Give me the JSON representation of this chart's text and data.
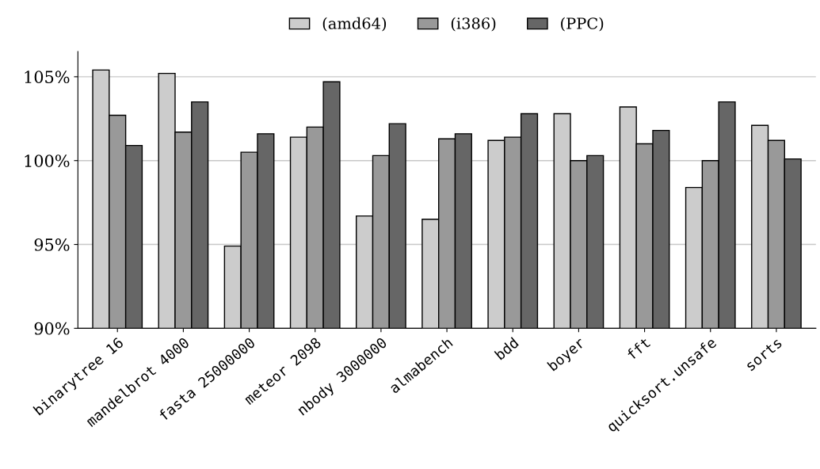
{
  "chart_data": {
    "type": "bar",
    "categories": [
      "binarytree 16",
      "mandelbrot 4000",
      "fasta 25000000",
      "meteor 2098",
      "nbody 3000000",
      "almabench",
      "bdd",
      "boyer",
      "fft",
      "quicksort.unsafe",
      "sorts"
    ],
    "series": [
      {
        "name": "(amd64)",
        "color": "#cccccc",
        "values": [
          105.4,
          105.2,
          94.9,
          101.4,
          96.7,
          96.5,
          101.2,
          102.8,
          103.2,
          98.4,
          102.1
        ]
      },
      {
        "name": "(i386)",
        "color": "#999999",
        "values": [
          102.7,
          101.7,
          100.5,
          102.0,
          100.3,
          101.3,
          101.4,
          100.0,
          101.0,
          100.0,
          101.2
        ]
      },
      {
        "name": "(PPC)",
        "color": "#666666",
        "values": [
          100.9,
          103.5,
          101.6,
          104.7,
          102.2,
          101.6,
          102.8,
          100.3,
          101.8,
          103.5,
          100.1
        ]
      }
    ],
    "ylim": [
      90,
      106.5
    ],
    "yticks": [
      {
        "value": 90,
        "label": "90%"
      },
      {
        "value": 95,
        "label": "95%"
      },
      {
        "value": 100,
        "label": "100%"
      },
      {
        "value": 105,
        "label": "105%"
      }
    ],
    "grid": "y",
    "legend": "top"
  }
}
